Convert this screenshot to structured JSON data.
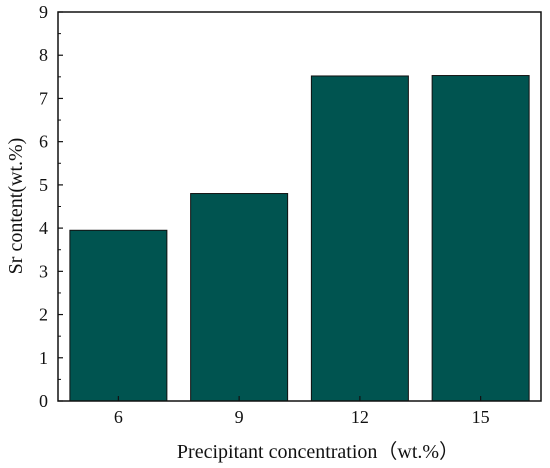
{
  "chart_data": {
    "type": "bar",
    "categories": [
      "6",
      "9",
      "12",
      "15"
    ],
    "values": [
      3.95,
      4.8,
      7.52,
      7.53
    ],
    "xlabel": "Precipitant concentration（wt.%）",
    "ylabel": "Sr content(wt.%)",
    "ylim": [
      0,
      9
    ],
    "yticks": [
      0,
      1,
      2,
      3,
      4,
      5,
      6,
      7,
      8,
      9
    ],
    "bar_color": "#005450",
    "bar_edge_color": "#111111",
    "grid": false,
    "legend": "none"
  }
}
